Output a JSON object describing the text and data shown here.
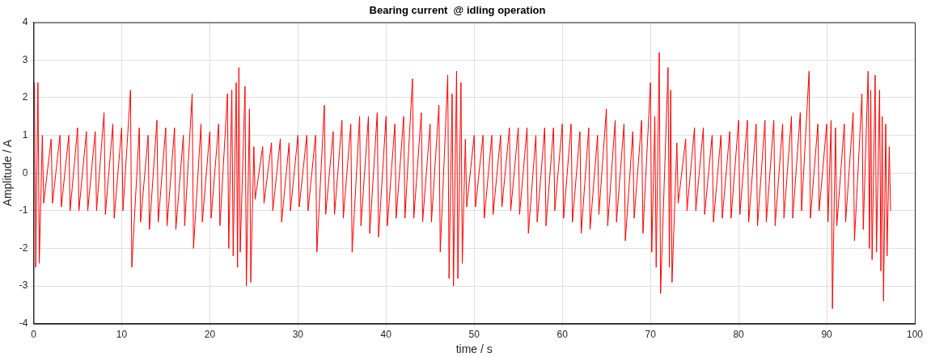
{
  "chart_data": {
    "type": "line",
    "title": "Bearing current  @ idling operation",
    "xlabel": "time / s",
    "ylabel": "Amplitude / A",
    "x": [
      0.1,
      0.25,
      0.5,
      0.65,
      1,
      1.15,
      2,
      2.15,
      3,
      3.15,
      4,
      4.15,
      5,
      5.15,
      6,
      6.15,
      7,
      7.15,
      8,
      8.15,
      9,
      9.15,
      10,
      10.15,
      11,
      11.15,
      12,
      12.15,
      13,
      13.15,
      14,
      14.15,
      15,
      15.15,
      16,
      16.15,
      17,
      17.15,
      18,
      18.15,
      19,
      19.15,
      20,
      20.15,
      21,
      21.15,
      22,
      22.15,
      22.5,
      22.65,
      23,
      23.15,
      23.3,
      23.45,
      24,
      24.15,
      24.5,
      24.65,
      25,
      25.15,
      26,
      26.15,
      27,
      27.15,
      28,
      28.15,
      29,
      29.15,
      30,
      30.15,
      31,
      31.15,
      32,
      32.15,
      33,
      33.15,
      34,
      34.15,
      35,
      35.15,
      36,
      36.15,
      37,
      37.15,
      38,
      38.15,
      39,
      39.15,
      40,
      40.15,
      41,
      41.15,
      42,
      42.15,
      43,
      43.15,
      44,
      44.15,
      45,
      45.15,
      46,
      46.15,
      47,
      47.15,
      47.5,
      47.65,
      48,
      48.15,
      48.5,
      48.65,
      49,
      49.15,
      50,
      50.15,
      51,
      51.15,
      52,
      52.15,
      53,
      53.15,
      54,
      54.15,
      55,
      55.15,
      56,
      56.15,
      57,
      57.15,
      58,
      58.15,
      59,
      59.15,
      60,
      60.15,
      61,
      61.15,
      62,
      62.15,
      63,
      63.15,
      64,
      64.15,
      65,
      65.15,
      66,
      66.15,
      67,
      67.15,
      68,
      68.15,
      69,
      69.15,
      70,
      70.15,
      70.5,
      70.65,
      71,
      71.15,
      72,
      72.15,
      72.3,
      72.45,
      73,
      73.15,
      74,
      74.15,
      75,
      75.15,
      76,
      76.15,
      77,
      77.15,
      78,
      78.15,
      79,
      79.15,
      80,
      80.15,
      81,
      81.15,
      82,
      82.15,
      83,
      83.15,
      84,
      84.15,
      85,
      85.15,
      86,
      86.15,
      87,
      87.15,
      88,
      88.15,
      89,
      89.15,
      90,
      90.15,
      90.5,
      90.65,
      91,
      91.15,
      92,
      92.15,
      93,
      93.15,
      94,
      94.15,
      94.7,
      94.85,
      95,
      95.15,
      95.5,
      95.65,
      96,
      96.15,
      96.3,
      96.45,
      96.7,
      96.85,
      97.1,
      97.25
    ],
    "values": [
      2.4,
      -2.5,
      2.4,
      -2.4,
      1.0,
      -0.8,
      0.9,
      -0.8,
      1.0,
      -0.9,
      1.0,
      -1.0,
      1.2,
      -1.0,
      1.1,
      -1.0,
      1.1,
      -1.0,
      1.6,
      -1.1,
      1.3,
      -1.2,
      1.2,
      -1.0,
      2.2,
      -2.5,
      1.2,
      -1.3,
      1.0,
      -1.5,
      1.4,
      -1.3,
      1.2,
      -1.4,
      1.2,
      -1.5,
      1.0,
      -1.4,
      2.1,
      -2.0,
      1.3,
      -1.3,
      1.1,
      -1.2,
      1.3,
      -1.4,
      2.1,
      -2.0,
      2.2,
      -2.2,
      2.4,
      -2.5,
      2.8,
      -2.1,
      2.3,
      -3.0,
      1.7,
      -2.9,
      0.7,
      -0.7,
      0.7,
      -0.8,
      0.8,
      -1.0,
      0.9,
      -1.3,
      0.8,
      -1.0,
      1.0,
      -0.9,
      1.0,
      -1.0,
      1.0,
      -2.1,
      1.8,
      -1.1,
      1.1,
      -1.1,
      1.4,
      -1.2,
      1.3,
      -2.1,
      1.5,
      -1.4,
      1.5,
      -1.6,
      1.6,
      -1.7,
      1.5,
      -1.4,
      1.3,
      -1.2,
      1.5,
      -1.2,
      2.5,
      -1.2,
      1.6,
      -1.3,
      1.3,
      -1.3,
      1.8,
      -2.1,
      2.6,
      -2.8,
      2.1,
      -3.0,
      2.7,
      -2.8,
      2.4,
      -2.4,
      0.9,
      -0.9,
      1.0,
      -0.9,
      1.0,
      -1.2,
      1.0,
      -1.1,
      1.0,
      -0.9,
      1.2,
      -1.0,
      1.2,
      -1.1,
      1.2,
      -1.6,
      1.0,
      -1.3,
      1.2,
      -1.4,
      1.2,
      -1.0,
      1.3,
      -1.2,
      1.3,
      -1.3,
      1.1,
      -1.6,
      1.2,
      -1.5,
      1.0,
      -1.1,
      1.7,
      -1.4,
      1.4,
      -1.3,
      1.3,
      -1.8,
      1.1,
      -1.2,
      1.4,
      -1.6,
      2.4,
      -2.1,
      1.5,
      -2.5,
      3.2,
      -3.2,
      2.8,
      -2.5,
      2.2,
      -2.9,
      0.8,
      -0.8,
      0.9,
      -1.0,
      1.2,
      -1.0,
      1.2,
      -1.1,
      1.0,
      -1.3,
      1.0,
      -1.2,
      1.1,
      -1.2,
      1.4,
      -1.1,
      1.4,
      -1.3,
      1.3,
      -1.4,
      1.4,
      -1.3,
      1.4,
      -1.4,
      1.3,
      -1.2,
      1.5,
      -1.2,
      1.6,
      -1.0,
      2.7,
      -1.2,
      1.3,
      -1.0,
      1.3,
      -1.3,
      1.4,
      -3.6,
      1.2,
      -1.4,
      1.3,
      -1.3,
      1.6,
      -1.8,
      2.1,
      -1.5,
      2.7,
      -2.0,
      2.2,
      -2.3,
      2.6,
      -2.1,
      2.2,
      -2.6,
      1.5,
      -3.4,
      1.3,
      -2.2,
      0.7,
      -1.0
    ],
    "color": "#ff0000",
    "xlim": [
      0,
      100
    ],
    "xticks": [
      0,
      10,
      20,
      30,
      40,
      50,
      60,
      70,
      80,
      90,
      100
    ],
    "ylim": [
      -4,
      4
    ],
    "yticks": [
      -4,
      -3,
      -2,
      -1,
      0,
      1,
      2,
      3,
      4
    ],
    "grid": true
  }
}
